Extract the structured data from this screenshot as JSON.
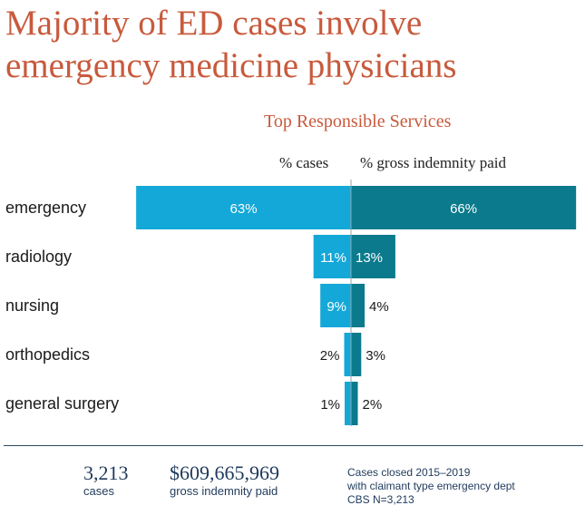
{
  "headline": {
    "line1": "Majority of ED cases involve",
    "line2": "emergency medicine physicians"
  },
  "footer": {
    "cases_value": "3,213",
    "cases_label": "cases",
    "indemnity_value": "$609,665,969",
    "indemnity_label": "gross indemnity paid",
    "note_lines": [
      "Cases closed 2015–2019",
      "with claimant type emergency dept",
      "CBS N=3,213"
    ]
  },
  "colors": {
    "headline": "#c85a3c",
    "cases_bar": "#13a8d8",
    "indemnity_bar": "#0a7a8c",
    "divider": "#2f4a5c",
    "footer_text": "#1f3a5c"
  },
  "chart_data": {
    "type": "bar",
    "orientation": "horizontal-diverging",
    "title": "Top Responsible Services",
    "categories": [
      "emergency",
      "radiology",
      "nursing",
      "orthopedics",
      "general surgery"
    ],
    "series": [
      {
        "name": "% cases",
        "values": [
          63,
          11,
          9,
          2,
          1
        ],
        "labels": [
          "63%",
          "11%",
          "9%",
          "2%",
          "1%"
        ]
      },
      {
        "name": "% gross indemnity paid",
        "values": [
          66,
          13,
          4,
          3,
          2
        ],
        "labels": [
          "66%",
          "13%",
          "4%",
          "3%",
          "2%"
        ]
      }
    ],
    "xlim": [
      0,
      66
    ]
  }
}
